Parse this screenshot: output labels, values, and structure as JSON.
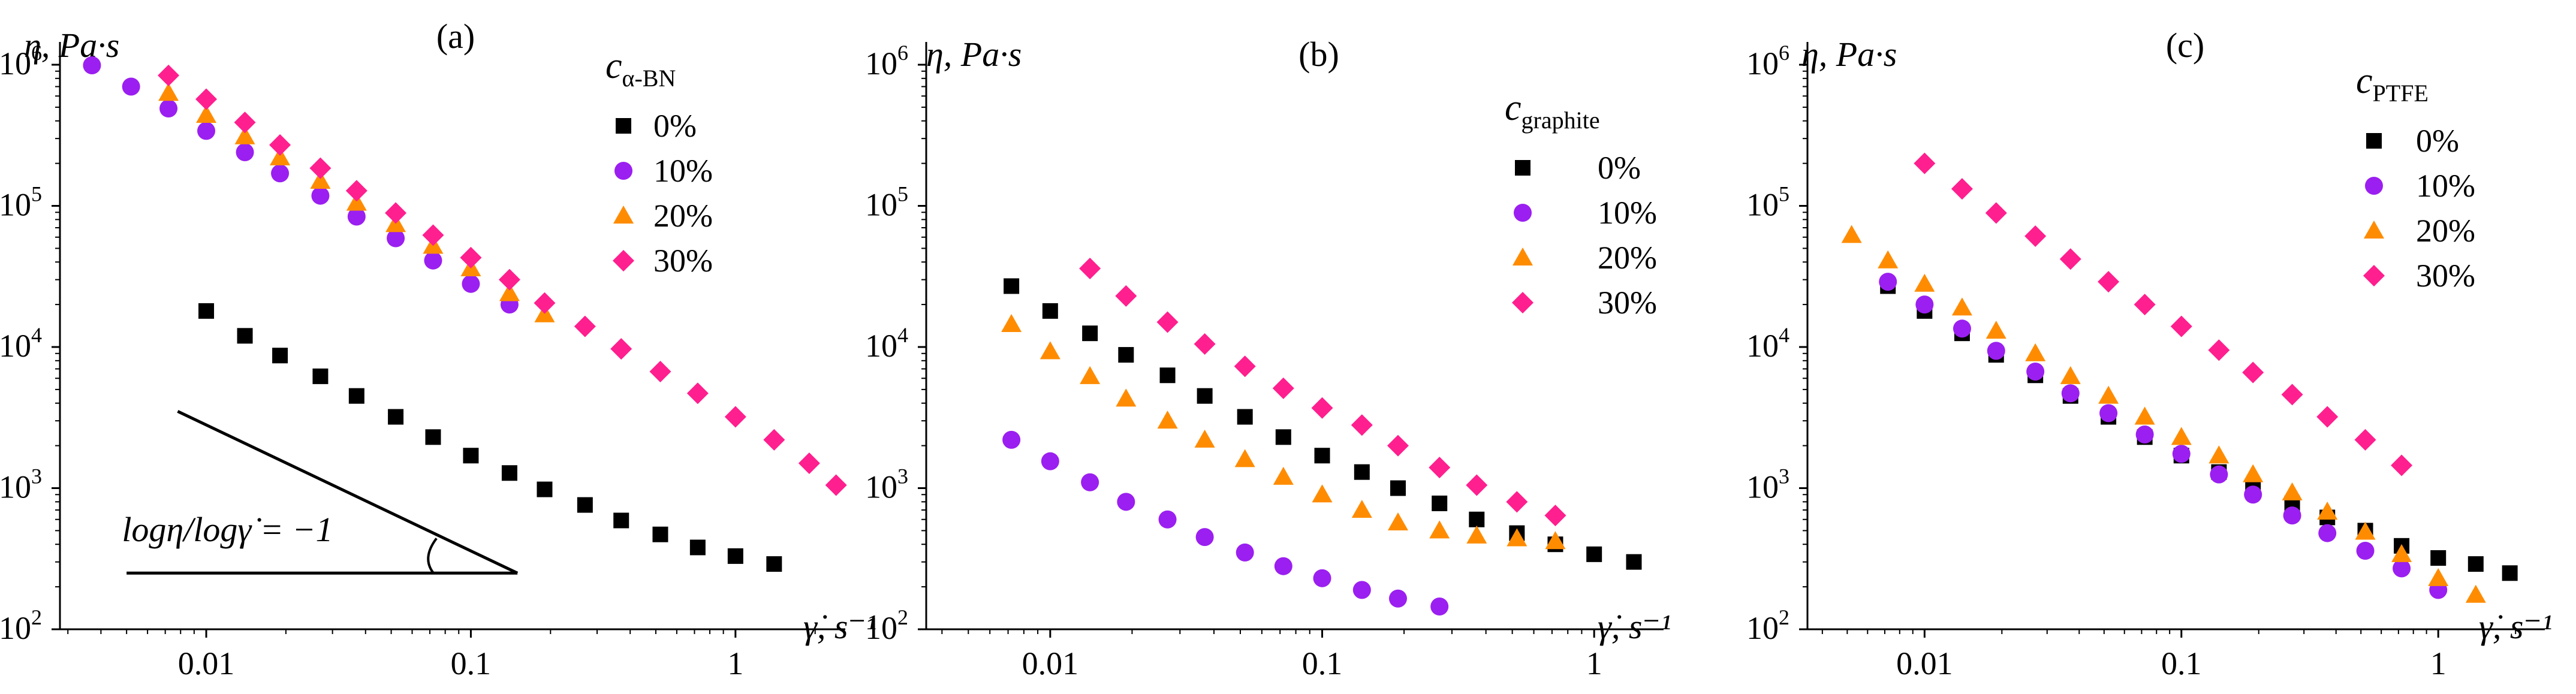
{
  "figure": {
    "background": "#ffffff"
  },
  "series_styles": [
    {
      "label": "0%",
      "marker": "square",
      "color": "#000000"
    },
    {
      "label": "10%",
      "marker": "circle",
      "color": "#9b1ff0"
    },
    {
      "label": "20%",
      "marker": "triangle",
      "color": "#ff8c00"
    },
    {
      "label": "30%",
      "marker": "diamond",
      "color": "#ff1f8e"
    }
  ],
  "chart_data": [
    {
      "type": "scatter",
      "panel_label": "(a)",
      "ylabel": "η, Pa·s",
      "xlabel": "γ̇, s⁻¹",
      "xscale": "log",
      "yscale": "log",
      "xlim": [
        0.0028,
        2.6
      ],
      "ylim": [
        100,
        1450000
      ],
      "x_ticks": [
        {
          "value": 0.01,
          "label": "0.01"
        },
        {
          "value": 0.1,
          "label": "0.1"
        },
        {
          "value": 1,
          "label": "1"
        }
      ],
      "y_ticks": [
        {
          "value": 100,
          "exp": "2"
        },
        {
          "value": 1000,
          "exp": "3"
        },
        {
          "value": 10000,
          "exp": "4"
        },
        {
          "value": 100000,
          "exp": "5"
        },
        {
          "value": 1000000,
          "exp": "6"
        }
      ],
      "legend": {
        "title_main": "c",
        "title_sub": "α-BN",
        "placement": "top-right"
      },
      "annotation": {
        "text": "logη/logγ̇ = −1",
        "slope": -1
      },
      "series": [
        {
          "name": "0%",
          "x": [
            0.01,
            0.014,
            0.019,
            0.027,
            0.037,
            0.052,
            0.072,
            0.1,
            0.14,
            0.19,
            0.27,
            0.37,
            0.52,
            0.72,
            1.0,
            1.4
          ],
          "y": [
            18000,
            12000,
            8700,
            6200,
            4500,
            3200,
            2300,
            1700,
            1280,
            980,
            760,
            590,
            470,
            380,
            330,
            290
          ]
        },
        {
          "name": "10%",
          "x": [
            0.0037,
            0.0052,
            0.0072,
            0.01,
            0.014,
            0.019,
            0.027,
            0.037,
            0.052,
            0.072,
            0.1,
            0.14
          ],
          "y": [
            990000,
            700000,
            490000,
            340000,
            240000,
            170000,
            118000,
            84000,
            59000,
            41000,
            28000,
            20000
          ]
        },
        {
          "name": "20%",
          "x": [
            0.0072,
            0.01,
            0.014,
            0.019,
            0.027,
            0.037,
            0.052,
            0.072,
            0.1,
            0.14,
            0.19
          ],
          "y": [
            630000,
            440000,
            310000,
            220000,
            150000,
            105000,
            74000,
            52000,
            36000,
            24000,
            17000
          ]
        },
        {
          "name": "30%",
          "x": [
            0.0072,
            0.01,
            0.014,
            0.019,
            0.027,
            0.037,
            0.052,
            0.072,
            0.1,
            0.14,
            0.19,
            0.27,
            0.37,
            0.52,
            0.72,
            1.0,
            1.4,
            1.9,
            2.4
          ],
          "y": [
            840000,
            570000,
            390000,
            270000,
            185000,
            128000,
            89000,
            62000,
            43000,
            30000,
            20500,
            14000,
            9700,
            6700,
            4700,
            3200,
            2200,
            1500,
            1050
          ]
        }
      ]
    },
    {
      "type": "scatter",
      "panel_label": "(b)",
      "ylabel": "η, Pa·s",
      "xlabel": "γ̇, s⁻¹",
      "xscale": "log",
      "yscale": "log",
      "xlim": [
        0.0035,
        1.8
      ],
      "ylim": [
        100,
        1450000
      ],
      "x_ticks": [
        {
          "value": 0.01,
          "label": "0.01"
        },
        {
          "value": 0.1,
          "label": "0.1"
        },
        {
          "value": 1,
          "label": "1"
        }
      ],
      "y_ticks": [
        {
          "value": 100,
          "exp": "2"
        },
        {
          "value": 1000,
          "exp": "3"
        },
        {
          "value": 10000,
          "exp": "4"
        },
        {
          "value": 100000,
          "exp": "5"
        },
        {
          "value": 1000000,
          "exp": "6"
        }
      ],
      "legend": {
        "title_main": "c",
        "title_sub": "graphite",
        "placement": "top-right"
      },
      "series": [
        {
          "name": "0%",
          "x": [
            0.0072,
            0.01,
            0.014,
            0.019,
            0.027,
            0.037,
            0.052,
            0.072,
            0.1,
            0.14,
            0.19,
            0.27,
            0.37,
            0.52,
            0.72,
            1.0,
            1.4
          ],
          "y": [
            27000,
            18000,
            12500,
            8800,
            6300,
            4500,
            3200,
            2300,
            1700,
            1300,
            1000,
            780,
            600,
            480,
            400,
            340,
            300
          ]
        },
        {
          "name": "10%",
          "x": [
            0.0072,
            0.01,
            0.014,
            0.019,
            0.027,
            0.037,
            0.052,
            0.072,
            0.1,
            0.14,
            0.19,
            0.27
          ],
          "y": [
            2200,
            1550,
            1100,
            800,
            600,
            450,
            350,
            280,
            230,
            190,
            165,
            145
          ]
        },
        {
          "name": "20%",
          "x": [
            0.0072,
            0.01,
            0.014,
            0.019,
            0.027,
            0.037,
            0.052,
            0.072,
            0.1,
            0.14,
            0.19,
            0.27,
            0.37,
            0.52,
            0.72
          ],
          "y": [
            14500,
            9300,
            6200,
            4300,
            3000,
            2200,
            1600,
            1200,
            900,
            700,
            570,
            500,
            460,
            440,
            420
          ]
        },
        {
          "name": "30%",
          "x": [
            0.014,
            0.019,
            0.027,
            0.037,
            0.052,
            0.072,
            0.1,
            0.14,
            0.19,
            0.27,
            0.37,
            0.52,
            0.72
          ],
          "y": [
            36000,
            23000,
            15000,
            10500,
            7300,
            5100,
            3700,
            2800,
            2000,
            1400,
            1050,
            800,
            640
          ]
        }
      ]
    },
    {
      "type": "scatter",
      "panel_label": "(c)",
      "ylabel": "η, Pa·s",
      "xlabel": "γ̇, s⁻¹",
      "xscale": "log",
      "yscale": "log",
      "xlim": [
        0.0035,
        2.6
      ],
      "ylim": [
        100,
        1450000
      ],
      "x_ticks": [
        {
          "value": 0.01,
          "label": "0.01"
        },
        {
          "value": 0.1,
          "label": "0.1"
        },
        {
          "value": 1,
          "label": "1"
        }
      ],
      "y_ticks": [
        {
          "value": 100,
          "exp": "2"
        },
        {
          "value": 1000,
          "exp": "3"
        },
        {
          "value": 10000,
          "exp": "4"
        },
        {
          "value": 100000,
          "exp": "5"
        },
        {
          "value": 1000000,
          "exp": "6"
        }
      ],
      "legend": {
        "title_main": "c",
        "title_sub": "PTFE",
        "placement": "top-right"
      },
      "series": [
        {
          "name": "0%",
          "x": [
            0.0072,
            0.01,
            0.014,
            0.019,
            0.027,
            0.037,
            0.052,
            0.072,
            0.1,
            0.14,
            0.19,
            0.27,
            0.37,
            0.52,
            0.72,
            1.0,
            1.4,
            1.9
          ],
          "y": [
            27000,
            18000,
            12500,
            8800,
            6300,
            4500,
            3200,
            2300,
            1700,
            1300,
            1000,
            780,
            620,
            500,
            390,
            320,
            290,
            250
          ]
        },
        {
          "name": "10%",
          "x": [
            0.0072,
            0.01,
            0.014,
            0.019,
            0.027,
            0.037,
            0.052,
            0.072,
            0.1,
            0.14,
            0.19,
            0.27,
            0.37,
            0.52,
            0.72,
            1.0
          ],
          "y": [
            29000,
            20000,
            13500,
            9400,
            6700,
            4700,
            3400,
            2400,
            1750,
            1250,
            900,
            640,
            480,
            360,
            270,
            190
          ]
        },
        {
          "name": "20%",
          "x": [
            0.0052,
            0.0072,
            0.01,
            0.014,
            0.019,
            0.027,
            0.037,
            0.052,
            0.072,
            0.1,
            0.14,
            0.19,
            0.27,
            0.37,
            0.52,
            0.72,
            1.0,
            1.4
          ],
          "y": [
            62000,
            41000,
            28000,
            19000,
            13000,
            9000,
            6200,
            4500,
            3200,
            2300,
            1700,
            1250,
            930,
            680,
            490,
            340,
            230,
            175
          ]
        },
        {
          "name": "30%",
          "x": [
            0.01,
            0.014,
            0.019,
            0.027,
            0.037,
            0.052,
            0.072,
            0.1,
            0.14,
            0.19,
            0.27,
            0.37,
            0.52,
            0.72
          ],
          "y": [
            200000,
            132000,
            89000,
            61000,
            42000,
            29000,
            20000,
            14000,
            9500,
            6600,
            4600,
            3200,
            2200,
            1450
          ]
        }
      ]
    }
  ]
}
